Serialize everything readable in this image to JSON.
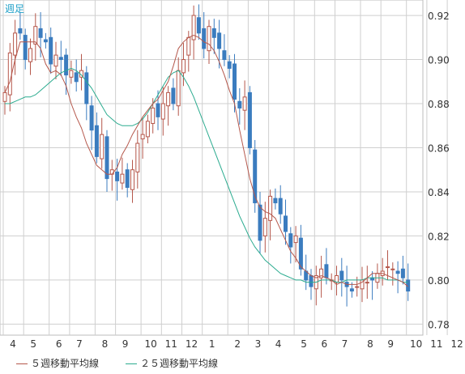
{
  "chart_data": {
    "type": "candlestick",
    "title": "",
    "period_label": "週足",
    "xlabel": "",
    "ylabel": "",
    "ylim": [
      0.775,
      0.927
    ],
    "y_ticks": [
      0.78,
      0.8,
      0.82,
      0.84,
      0.86,
      0.88,
      0.9,
      0.92
    ],
    "y_tick_labels": [
      "0.78",
      "0.80",
      "0.82",
      "0.84",
      "0.86",
      "0.88",
      "0.90",
      "0.92"
    ],
    "x_month_labels": [
      "4",
      "5",
      "6",
      "7",
      "8",
      "9",
      "10",
      "11",
      "12",
      "1",
      "2",
      "3",
      "4",
      "5",
      "6",
      "7",
      "8",
      "9",
      "10",
      "11",
      "12"
    ],
    "x_month_start_index": [
      0,
      4,
      9,
      13,
      18,
      22,
      27,
      31,
      35,
      39,
      44,
      48,
      52,
      57,
      61,
      65,
      70,
      74,
      79,
      83,
      87
    ],
    "grid": true,
    "legend_position": "bottom",
    "colors": {
      "up": "#b5574b",
      "down": "#3b7cbf",
      "ma5": "#b5574b",
      "ma25": "#2bab8f",
      "grid": "#cfcfcf",
      "text": "#333333",
      "period_label": "#1fa0c8"
    },
    "series": [
      {
        "name": "５週移動平均線",
        "type": "line",
        "color": "#b5574b"
      },
      {
        "name": "２５週移動平均線",
        "type": "line",
        "color": "#2bab8f"
      }
    ],
    "closes": [
      0.885,
      0.903,
      0.912,
      0.912,
      0.9,
      0.905,
      0.915,
      0.91,
      0.908,
      0.898,
      0.902,
      0.9,
      0.893,
      0.895,
      0.89,
      0.895,
      0.88,
      0.868,
      0.856,
      0.866,
      0.846,
      0.85,
      0.845,
      0.848,
      0.842,
      0.85,
      0.862,
      0.866,
      0.872,
      0.878,
      0.874,
      0.88,
      0.885,
      0.88,
      0.895,
      0.9,
      0.91,
      0.92,
      0.912,
      0.905,
      0.915,
      0.91,
      0.905,
      0.9,
      0.896,
      0.882,
      0.878,
      0.883,
      0.86,
      0.835,
      0.818,
      0.828,
      0.838,
      0.835,
      0.83,
      0.822,
      0.815,
      0.82,
      0.805,
      0.8,
      0.797,
      0.802,
      0.805,
      0.801,
      0.8,
      0.802,
      0.8,
      0.797,
      0.795,
      0.797,
      0.8,
      0.799,
      0.8,
      0.803,
      0.804,
      0.806,
      0.805,
      0.803,
      0.801,
      0.795
    ],
    "ma5": [
      0.885,
      0.89,
      0.9,
      0.908,
      0.908,
      0.908,
      0.908,
      0.905,
      0.898,
      0.894,
      0.895,
      0.893,
      0.888,
      0.88,
      0.874,
      0.869,
      0.862,
      0.857,
      0.852,
      0.85,
      0.848,
      0.848,
      0.851,
      0.857,
      0.861,
      0.866,
      0.87,
      0.874,
      0.877,
      0.88,
      0.882,
      0.886,
      0.89,
      0.897,
      0.905,
      0.908,
      0.91,
      0.911,
      0.91,
      0.908,
      0.907,
      0.904,
      0.899,
      0.893,
      0.886,
      0.88,
      0.868,
      0.857,
      0.846,
      0.838,
      0.833,
      0.831,
      0.83,
      0.828,
      0.823,
      0.818,
      0.813,
      0.81,
      0.806,
      0.804,
      0.802,
      0.801,
      0.802,
      0.801,
      0.8,
      0.798,
      0.799,
      0.798,
      0.798,
      0.798,
      0.799,
      0.801,
      0.803,
      0.803,
      0.803,
      0.802,
      0.801,
      0.8,
      0.799,
      0.797
    ],
    "ma25": [
      0.88,
      0.88,
      0.881,
      0.882,
      0.883,
      0.883,
      0.884,
      0.886,
      0.888,
      0.89,
      0.892,
      0.894,
      0.895,
      0.896,
      0.895,
      0.893,
      0.89,
      0.887,
      0.883,
      0.879,
      0.875,
      0.873,
      0.871,
      0.87,
      0.87,
      0.87,
      0.871,
      0.873,
      0.876,
      0.88,
      0.884,
      0.888,
      0.892,
      0.894,
      0.895,
      0.892,
      0.888,
      0.883,
      0.877,
      0.871,
      0.865,
      0.859,
      0.853,
      0.847,
      0.841,
      0.835,
      0.829,
      0.824,
      0.819,
      0.815,
      0.812,
      0.809,
      0.807,
      0.805,
      0.803,
      0.802,
      0.801,
      0.8,
      0.8,
      0.799,
      0.799,
      0.799,
      0.8,
      0.8,
      0.8,
      0.799,
      0.799,
      0.8,
      0.8,
      0.8,
      0.8,
      0.801,
      0.801,
      0.801,
      0.801,
      0.8,
      0.8,
      0.8,
      0.799,
      0.799
    ]
  }
}
